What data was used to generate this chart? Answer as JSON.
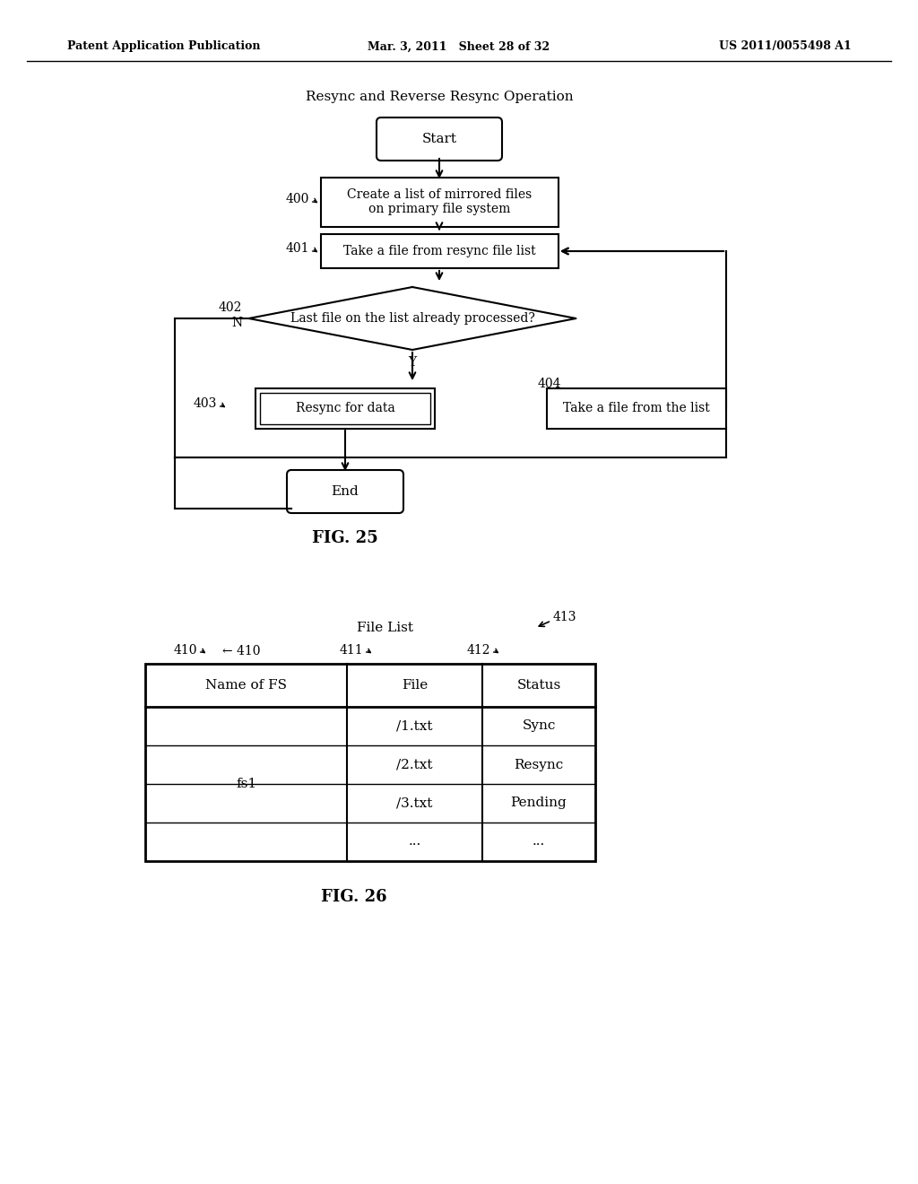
{
  "bg_color": "#ffffff",
  "header": {
    "left": "Patent Application Publication",
    "center": "Mar. 3, 2011   Sheet 28 of 32",
    "right": "US 2011/0055498 A1"
  },
  "fig25_title": "Resync and Reverse Resync Operation",
  "fig25_label": "FIG. 25",
  "fig26_label": "FIG. 26",
  "fig26_file_list": "File List",
  "fig26_413": "413",
  "fig26_cols": [
    "Name of FS",
    "File",
    "Status"
  ],
  "fig26_col_refs": [
    "410",
    "411",
    "412"
  ],
  "fig26_rows": [
    [
      "fs1",
      "/1.txt",
      "Sync"
    ],
    [
      "",
      "/2.txt",
      "Resync"
    ],
    [
      "",
      "/3.txt",
      "Pending"
    ],
    [
      "",
      "...",
      "..."
    ]
  ]
}
